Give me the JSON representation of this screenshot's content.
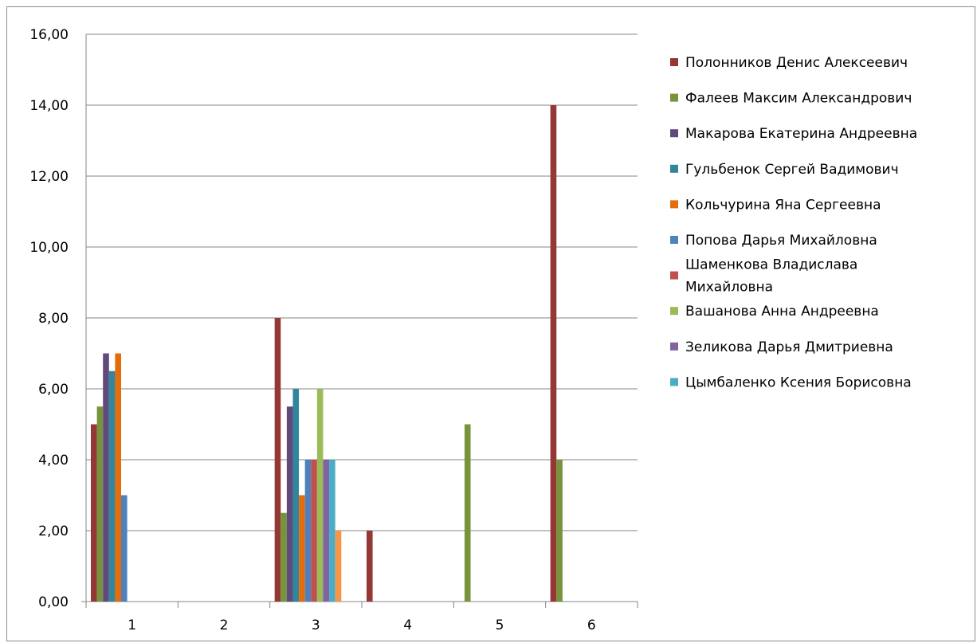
{
  "chart_data": {
    "type": "bar",
    "categories": [
      "1",
      "2",
      "3",
      "4",
      "5",
      "6"
    ],
    "ylim": [
      0,
      16
    ],
    "yticks": [
      "0,00",
      "2,00",
      "4,00",
      "6,00",
      "8,00",
      "10,00",
      "12,00",
      "14,00",
      "16,00"
    ],
    "grid": true,
    "legend_position": "right",
    "series": [
      {
        "name": "Полонников Денис Алексеевич",
        "color": "#953735",
        "values": [
          5,
          0,
          8,
          2,
          0,
          14
        ]
      },
      {
        "name": "Фалеев Максим Александрович",
        "color": "#77933c",
        "values": [
          5.5,
          0,
          2.5,
          0,
          5,
          4
        ]
      },
      {
        "name": "Макарова Екатерина Андреевна",
        "color": "#604a7b",
        "values": [
          7,
          0,
          5.5,
          0,
          0,
          0
        ]
      },
      {
        "name": "Гульбенок Сергей Вадимович",
        "color": "#31859c",
        "values": [
          6.5,
          0,
          6,
          0,
          0,
          0
        ]
      },
      {
        "name": "Кольчурина Яна Сергеевна",
        "color": "#e46c0a",
        "values": [
          7,
          0,
          3,
          0,
          0,
          0
        ]
      },
      {
        "name": "Попова Дарья Михайловна",
        "color": "#4f81bd",
        "values": [
          3,
          0,
          4,
          0,
          0,
          0
        ]
      },
      {
        "name": "Шаменкова Владислава Михайловна",
        "color": "#c0504d",
        "values": [
          0,
          0,
          4,
          0,
          0,
          0
        ]
      },
      {
        "name": "Вашанова Анна Андреевна",
        "color": "#9bbb59",
        "values": [
          0,
          0,
          6,
          0,
          0,
          0
        ]
      },
      {
        "name": "Зеликова Дарья Дмитриевна",
        "color": "#8064a2",
        "values": [
          0,
          0,
          4,
          0,
          0,
          0
        ]
      },
      {
        "name": "Цымбаленко Ксения Борисовна",
        "color": "#4bacc6",
        "values": [
          0,
          0,
          4,
          0,
          0,
          0
        ]
      },
      {
        "name": "",
        "color": "#f79646",
        "values": [
          0,
          0,
          2,
          0,
          0,
          0
        ]
      }
    ]
  }
}
